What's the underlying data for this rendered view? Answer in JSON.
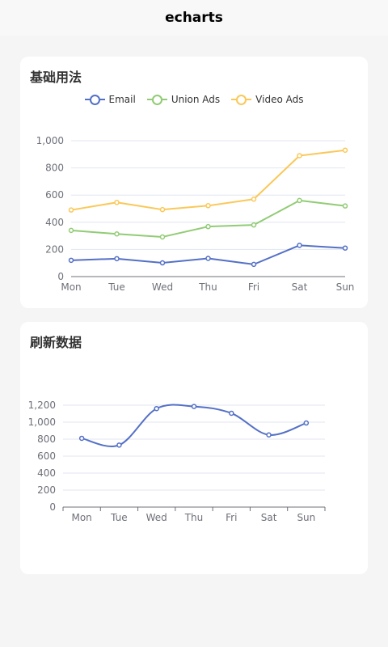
{
  "header": {
    "title": "echarts"
  },
  "cards": [
    {
      "title": "基础用法"
    },
    {
      "title": "刷新数据"
    }
  ],
  "chart_data": [
    {
      "type": "line",
      "title": "基础用法",
      "categories": [
        "Mon",
        "Tue",
        "Wed",
        "Thu",
        "Fri",
        "Sat",
        "Sun"
      ],
      "ylim": [
        0,
        1000
      ],
      "yticks": [
        "0",
        "200",
        "400",
        "600",
        "800",
        "1,000"
      ],
      "legend": "top-center",
      "grid": true,
      "series": [
        {
          "name": "Email",
          "color": "#5470c6",
          "values": [
            120,
            132,
            101,
            134,
            90,
            230,
            210
          ]
        },
        {
          "name": "Union Ads",
          "color": "#91cc75",
          "values": [
            340,
            314,
            292,
            368,
            380,
            560,
            520
          ]
        },
        {
          "name": "Video Ads",
          "color": "#fac858",
          "values": [
            490,
            546,
            493,
            522,
            570,
            890,
            930
          ]
        }
      ]
    },
    {
      "type": "line",
      "title": "刷新数据",
      "smooth": true,
      "categories": [
        "Mon",
        "Tue",
        "Wed",
        "Thu",
        "Fri",
        "Sat",
        "Sun"
      ],
      "ylim": [
        0,
        1200
      ],
      "yticks": [
        "0",
        "200",
        "400",
        "600",
        "800",
        "1,000",
        "1,200"
      ],
      "grid": true,
      "series": [
        {
          "color": "#5470c6",
          "values": [
            810,
            730,
            1160,
            1185,
            1105,
            850,
            990
          ]
        }
      ]
    }
  ]
}
